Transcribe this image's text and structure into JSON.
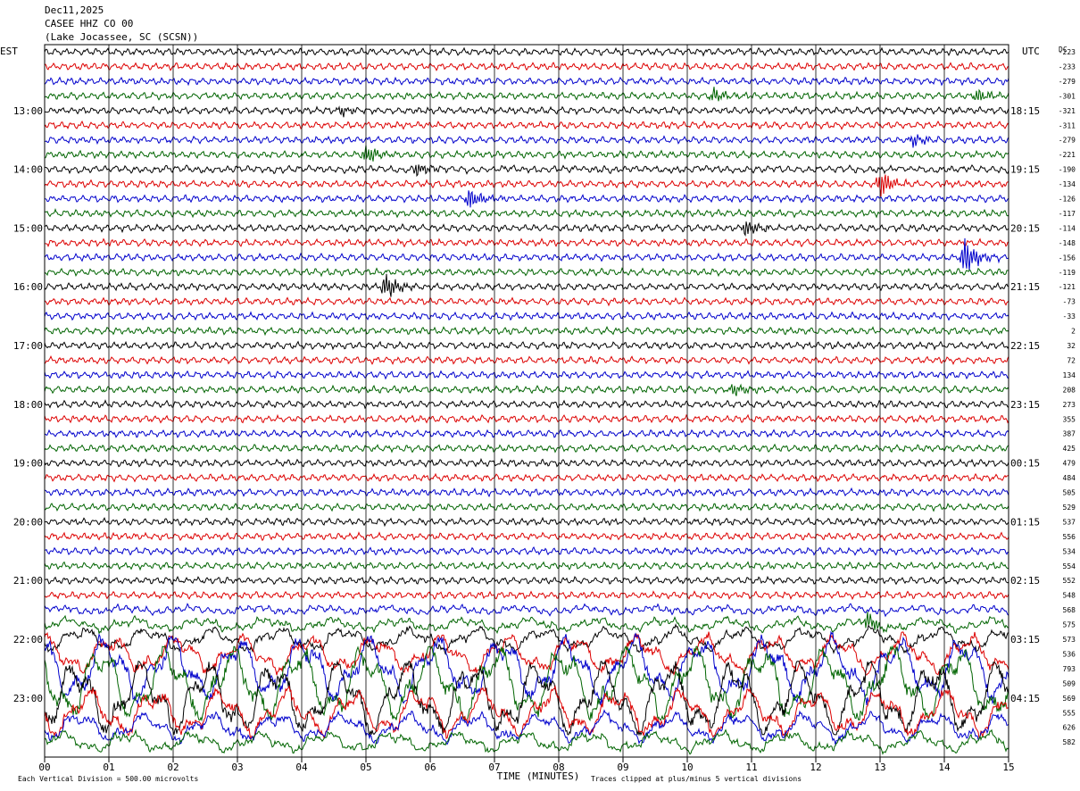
{
  "header": {
    "date": "Dec11,2025",
    "station": "CASEE HHZ CO 00",
    "location": "(Lake Jocassee, SC (SCSN))"
  },
  "chart_data": {
    "type": "helicorder",
    "left_axis_label": "EST",
    "right_axis_label": "UTC",
    "dc_label": "DC",
    "xlabel": "TIME (MINUTES)",
    "x_ticks": [
      "00",
      "01",
      "02",
      "03",
      "04",
      "05",
      "06",
      "07",
      "08",
      "09",
      "10",
      "11",
      "12",
      "13",
      "14",
      "15"
    ],
    "xlim": [
      0,
      15
    ],
    "lines_per_hour": 4,
    "est_hour_labels": [
      "13:00",
      "14:00",
      "15:00",
      "16:00",
      "17:00",
      "18:00",
      "19:00",
      "20:00",
      "21:00",
      "22:00",
      "23:00"
    ],
    "utc_hour_labels": [
      "18:15",
      "19:15",
      "20:15",
      "21:15",
      "22:15",
      "23:15",
      "00:15",
      "01:15",
      "02:15",
      "03:15",
      "04:15"
    ],
    "trace_colors": [
      "#000000",
      "#dd0000",
      "#0000cc",
      "#006400"
    ],
    "dc_offsets": [
      -223,
      -233,
      -279,
      -301,
      -321,
      -311,
      -279,
      -221,
      -190,
      -134,
      -126,
      -117,
      -114,
      -148,
      -156,
      -119,
      -121,
      -73,
      -33,
      2,
      32,
      72,
      134,
      208,
      273,
      355,
      387,
      425,
      479,
      484,
      505,
      529,
      537,
      556,
      534,
      554,
      552,
      548,
      568,
      575,
      573,
      536,
      793,
      509,
      569,
      555,
      626,
      582
    ],
    "amplitude_levels": [
      1,
      1,
      1,
      1,
      1,
      1,
      1,
      1,
      1.1,
      1,
      1,
      1,
      1,
      1,
      1,
      1,
      1,
      1,
      1,
      1,
      1,
      1,
      1,
      1,
      1,
      1,
      1,
      1,
      1,
      1,
      1,
      1,
      1,
      1,
      1,
      1,
      1,
      1,
      1.3,
      1.6,
      2.2,
      3,
      4.5,
      5,
      5,
      3.5,
      2.5,
      2
    ],
    "events": [
      {
        "line": 3,
        "minute": 10.4,
        "amp": 3
      },
      {
        "line": 3,
        "minute": 14.5,
        "amp": 3
      },
      {
        "line": 4,
        "minute": 4.6,
        "amp": 2
      },
      {
        "line": 6,
        "minute": 13.5,
        "amp": 3
      },
      {
        "line": 7,
        "minute": 5.0,
        "amp": 4
      },
      {
        "line": 8,
        "minute": 5.8,
        "amp": 3
      },
      {
        "line": 9,
        "minute": 13.0,
        "amp": 6
      },
      {
        "line": 10,
        "minute": 6.6,
        "amp": 5
      },
      {
        "line": 12,
        "minute": 10.9,
        "amp": 4
      },
      {
        "line": 14,
        "minute": 14.3,
        "amp": 8
      },
      {
        "line": 16,
        "minute": 5.3,
        "amp": 6
      },
      {
        "line": 23,
        "minute": 10.7,
        "amp": 3
      },
      {
        "line": 39,
        "minute": 12.8,
        "amp": 4
      }
    ],
    "scale_note": "Each Vertical Division =  500.00 microvolts",
    "clip_note": "Traces clipped at plus/minus 5 vertical divisions"
  }
}
